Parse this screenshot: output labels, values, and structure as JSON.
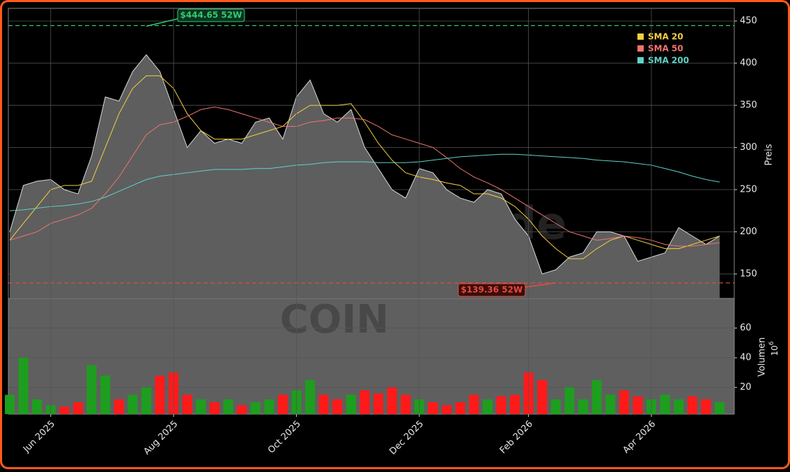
{
  "chart_data": [
    {
      "type": "line",
      "ylabel": "Preis",
      "ylim": [
        121,
        465
      ],
      "yticks": [
        150,
        200,
        250,
        300,
        350,
        400,
        450
      ],
      "grid": true,
      "values": [
        200,
        255,
        260,
        262,
        250,
        245,
        290,
        360,
        355,
        390,
        410,
        390,
        345,
        300,
        320,
        305,
        310,
        305,
        330,
        335,
        310,
        360,
        380,
        340,
        330,
        345,
        300,
        275,
        250,
        240,
        275,
        270,
        250,
        240,
        235,
        250,
        245,
        215,
        195,
        150,
        155,
        170,
        175,
        200,
        200,
        195,
        165,
        170,
        175,
        205,
        195,
        185,
        195
      ],
      "color": "#d9d9d9",
      "fill": "#5e5e5e",
      "series": [
        {
          "name": "SMA 20",
          "color": "#f4d03f",
          "values": [
            190,
            210,
            230,
            250,
            255,
            255,
            260,
            300,
            340,
            370,
            385,
            385,
            370,
            340,
            320,
            310,
            310,
            310,
            315,
            320,
            325,
            340,
            350,
            350,
            350,
            352,
            330,
            305,
            285,
            270,
            265,
            262,
            258,
            255,
            245,
            245,
            240,
            230,
            215,
            195,
            180,
            168,
            168,
            180,
            190,
            195,
            190,
            185,
            180,
            180,
            185,
            190,
            195
          ]
        },
        {
          "name": "SMA 50",
          "color": "#f07470",
          "values": [
            190,
            195,
            200,
            210,
            215,
            220,
            228,
            245,
            265,
            290,
            315,
            327,
            330,
            337,
            345,
            348,
            345,
            340,
            335,
            330,
            325,
            325,
            330,
            332,
            335,
            335,
            333,
            325,
            315,
            310,
            305,
            300,
            288,
            275,
            265,
            258,
            250,
            240,
            230,
            220,
            210,
            200,
            195,
            190,
            192,
            195,
            193,
            190,
            185,
            183,
            183,
            185,
            187
          ]
        },
        {
          "name": "SMA 200",
          "color": "#5fd3c8",
          "values": [
            225,
            226,
            228,
            230,
            231,
            233,
            236,
            241,
            248,
            255,
            262,
            266,
            268,
            270,
            272,
            274,
            274,
            274,
            275,
            275,
            277,
            279,
            280,
            282,
            283,
            283,
            283,
            282,
            282,
            282,
            283,
            285,
            287,
            289,
            290,
            291,
            292,
            292,
            291,
            290,
            289,
            288,
            287,
            285,
            284,
            283,
            281,
            279,
            275,
            271,
            266,
            262,
            259
          ]
        }
      ],
      "annotations": [
        {
          "text": "$444.65 52W",
          "value": 444.65,
          "index": 10,
          "color": "#2ecc71"
        },
        {
          "text": "$139.36 52W",
          "value": 139.36,
          "index": 40,
          "color": "#e74c3c"
        }
      ],
      "watermark": "forexsignale.trade"
    },
    {
      "type": "bar",
      "ylabel": "Volumen",
      "ylabel_scale": {
        "base": "10",
        "exponent": "6"
      },
      "ylim": [
        2,
        80
      ],
      "yticks": [
        20,
        40,
        60
      ],
      "grid": true,
      "categories": [
        null,
        null,
        null,
        "Jun 2025",
        null,
        null,
        null,
        null,
        null,
        null,
        null,
        null,
        "Aug 2025",
        null,
        null,
        null,
        null,
        null,
        null,
        null,
        null,
        "Oct 2025",
        null,
        null,
        null,
        null,
        null,
        null,
        null,
        null,
        "Dec 2025",
        null,
        null,
        null,
        null,
        null,
        null,
        null,
        "Feb 2026",
        null,
        null,
        null,
        null,
        null,
        null,
        null,
        null,
        "Apr 2026",
        null,
        null,
        null,
        null,
        null
      ],
      "values": [
        15,
        40,
        12,
        8,
        7,
        10,
        35,
        28,
        12,
        15,
        20,
        28,
        30,
        15,
        12,
        10,
        12,
        8,
        10,
        12,
        15,
        18,
        25,
        15,
        12,
        15,
        18,
        16,
        20,
        15,
        12,
        10,
        8,
        10,
        15,
        12,
        14,
        15,
        30,
        25,
        12,
        20,
        12,
        25,
        15,
        18,
        14,
        12,
        15,
        12,
        14,
        12,
        10
      ],
      "up_color": "#1e9e1e",
      "down_color": "#ff1a1a",
      "watermark": "COIN"
    }
  ]
}
